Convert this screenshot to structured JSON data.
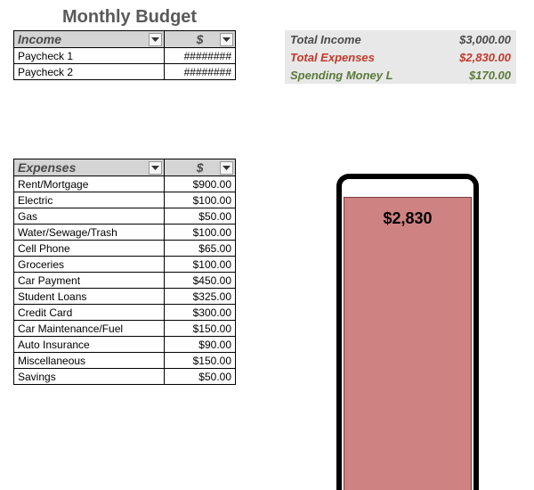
{
  "title": "Monthly Budget",
  "income": {
    "header_label": "Income",
    "header_amount": "$",
    "rows": [
      {
        "label": "Paycheck 1",
        "value": "########"
      },
      {
        "label": "Paycheck 2",
        "value": "########"
      }
    ]
  },
  "expenses": {
    "header_label": "Expenses",
    "header_amount": "$",
    "rows": [
      {
        "label": "Rent/Mortgage",
        "value": "$900.00"
      },
      {
        "label": "Electric",
        "value": "$100.00"
      },
      {
        "label": "Gas",
        "value": "$50.00"
      },
      {
        "label": "Water/Sewage/Trash",
        "value": "$100.00"
      },
      {
        "label": "Cell Phone",
        "value": "$65.00"
      },
      {
        "label": "Groceries",
        "value": "$100.00"
      },
      {
        "label": "Car Payment",
        "value": "$450.00"
      },
      {
        "label": "Student Loans",
        "value": "$325.00"
      },
      {
        "label": "Credit Card",
        "value": "$300.00"
      },
      {
        "label": "Car Maintenance/Fuel",
        "value": "$150.00"
      },
      {
        "label": "Auto Insurance",
        "value": "$90.00"
      },
      {
        "label": "Miscellaneous",
        "value": "$150.00"
      },
      {
        "label": "Savings",
        "value": "$50.00"
      }
    ]
  },
  "summary": {
    "rows": [
      {
        "label": "Total Income",
        "value": "$3,000.00",
        "color": "#4a4a4a"
      },
      {
        "label": "Total Expenses",
        "value": "$2,830.00",
        "color": "#c0392b"
      },
      {
        "label": "Spending Money L",
        "value": "$170.00",
        "color": "#5a7a3a"
      }
    ]
  },
  "thermo": {
    "value_label": "$2,830",
    "fill_percent": 94.3,
    "fill_color": "#cf8282",
    "border_color": "#000000"
  }
}
